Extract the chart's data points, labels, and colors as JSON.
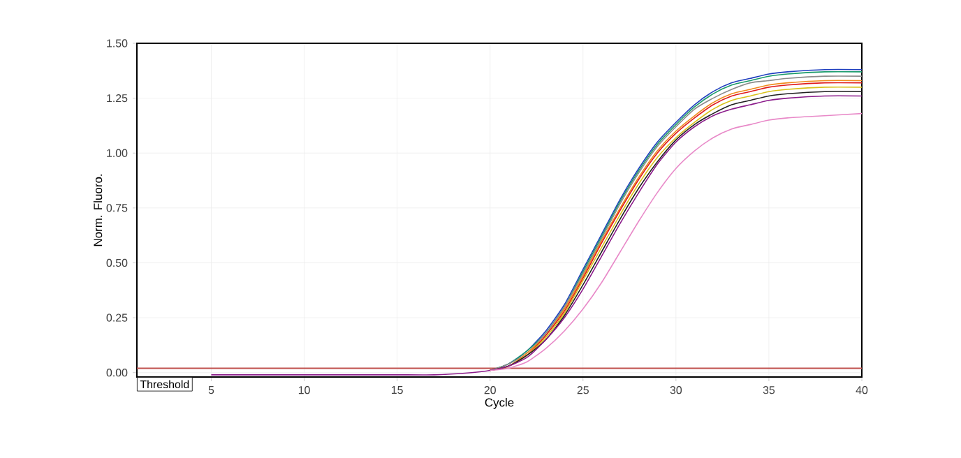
{
  "chart_data": {
    "type": "line",
    "xlabel": "Cycle",
    "ylabel": "Norm. Fluoro.",
    "x": [
      5,
      8,
      10,
      13,
      15,
      17,
      19,
      20,
      21,
      22,
      23,
      24,
      25,
      26,
      27,
      28,
      29,
      30,
      31,
      32,
      33,
      34,
      35,
      36,
      38,
      40
    ],
    "series": [
      {
        "color": "#1f3fbf",
        "values": [
          null,
          null,
          null,
          null,
          null,
          null,
          null,
          0.01,
          0.04,
          0.1,
          0.19,
          0.31,
          0.47,
          0.63,
          0.79,
          0.93,
          1.05,
          1.14,
          1.22,
          1.28,
          1.32,
          1.34,
          1.36,
          1.37,
          1.38,
          1.38
        ]
      },
      {
        "color": "#1a9a6a",
        "values": [
          null,
          null,
          null,
          null,
          null,
          null,
          null,
          0.01,
          0.04,
          0.1,
          0.18,
          0.3,
          0.46,
          0.62,
          0.78,
          0.92,
          1.04,
          1.13,
          1.21,
          1.27,
          1.31,
          1.33,
          1.35,
          1.36,
          1.37,
          1.37
        ]
      },
      {
        "color": "#8c8c8c",
        "values": [
          null,
          null,
          null,
          null,
          null,
          null,
          null,
          0.01,
          0.04,
          0.09,
          0.18,
          0.3,
          0.45,
          0.61,
          0.77,
          0.91,
          1.03,
          1.12,
          1.2,
          1.25,
          1.29,
          1.32,
          1.33,
          1.34,
          1.35,
          1.35
        ]
      },
      {
        "color": "#f08a1c",
        "values": [
          null,
          null,
          null,
          null,
          null,
          null,
          null,
          0.01,
          0.03,
          0.09,
          0.17,
          0.29,
          0.44,
          0.6,
          0.75,
          0.89,
          1.01,
          1.1,
          1.17,
          1.23,
          1.27,
          1.29,
          1.31,
          1.32,
          1.33,
          1.33
        ]
      },
      {
        "color": "#e01b1b",
        "values": [
          null,
          null,
          null,
          null,
          null,
          null,
          null,
          0.01,
          0.03,
          0.08,
          0.17,
          0.28,
          0.43,
          0.59,
          0.74,
          0.88,
          1.0,
          1.09,
          1.16,
          1.22,
          1.26,
          1.28,
          1.3,
          1.31,
          1.32,
          1.32
        ]
      },
      {
        "color": "#d8c21a",
        "values": [
          null,
          null,
          null,
          null,
          null,
          null,
          null,
          0.01,
          0.03,
          0.08,
          0.16,
          0.27,
          0.42,
          0.57,
          0.72,
          0.86,
          0.98,
          1.07,
          1.14,
          1.2,
          1.24,
          1.26,
          1.28,
          1.29,
          1.3,
          1.3
        ]
      },
      {
        "color": "#202020",
        "values": [
          null,
          null,
          null,
          null,
          null,
          null,
          null,
          0.01,
          0.03,
          0.08,
          0.15,
          0.26,
          0.4,
          0.55,
          0.7,
          0.84,
          0.96,
          1.06,
          1.13,
          1.18,
          1.22,
          1.24,
          1.26,
          1.27,
          1.28,
          1.28
        ]
      },
      {
        "color": "#8a1a8a",
        "values": [
          -0.01,
          -0.01,
          -0.01,
          -0.01,
          -0.01,
          -0.01,
          0.0,
          0.01,
          0.03,
          0.07,
          0.15,
          0.25,
          0.38,
          0.53,
          0.68,
          0.82,
          0.95,
          1.05,
          1.12,
          1.17,
          1.2,
          1.22,
          1.24,
          1.25,
          1.26,
          1.26
        ]
      },
      {
        "color": "#e889c8",
        "values": [
          null,
          null,
          null,
          null,
          null,
          null,
          null,
          0.01,
          0.02,
          0.05,
          0.11,
          0.19,
          0.29,
          0.41,
          0.55,
          0.69,
          0.82,
          0.93,
          1.01,
          1.07,
          1.11,
          1.13,
          1.15,
          1.16,
          1.17,
          1.18
        ]
      }
    ],
    "xlim": [
      1,
      40
    ],
    "ylim": [
      -0.02,
      1.5
    ],
    "xticks": [
      5,
      10,
      15,
      20,
      25,
      30,
      35,
      40
    ],
    "yticks": [
      {
        "value": 0,
        "label": "0.00"
      },
      {
        "value": 0.25,
        "label": "0.25"
      },
      {
        "value": 0.5,
        "label": "0.50"
      },
      {
        "value": 0.75,
        "label": "0.75"
      },
      {
        "value": 1.0,
        "label": "1.00"
      },
      {
        "value": 1.25,
        "label": "1.25"
      },
      {
        "value": 1.5,
        "label": "1.50"
      }
    ],
    "ref_lines": [
      {
        "axis": "y",
        "value": 0.02,
        "label": "Threshold",
        "color": "#c0504d"
      }
    ],
    "grid": true,
    "marker": "none",
    "line_style": "solid"
  }
}
